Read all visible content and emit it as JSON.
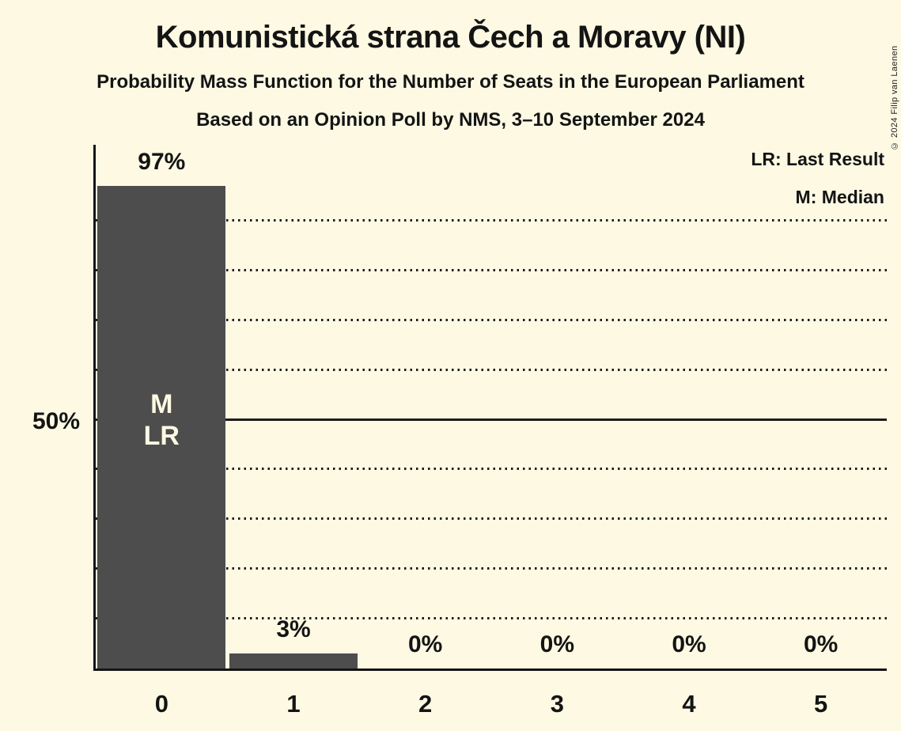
{
  "title": "Komunistická strana Čech a Moravy (NI)",
  "subtitle": "Probability Mass Function for the Number of Seats in the European Parliament",
  "poll_info": "Based on an Opinion Poll by NMS, 3–10 September 2024",
  "copyright": "© 2024 Filip van Laenen",
  "legend": {
    "last_result": "LR: Last Result",
    "median": "M: Median"
  },
  "colors": {
    "background": "#FDF9E3",
    "bar": "#4D4D4D",
    "text": "#141414",
    "bar_annotation_text": "#FDF9E3",
    "gridline": "#1C1C1C"
  },
  "chart_data": {
    "type": "bar",
    "title": "Komunistická strana Čech a Moravy (NI)",
    "categories": [
      "0",
      "1",
      "2",
      "3",
      "4",
      "5"
    ],
    "values": [
      97,
      3,
      0,
      0,
      0,
      0
    ],
    "value_labels": [
      "97%",
      "3%",
      "0%",
      "0%",
      "0%",
      "0%"
    ],
    "xlabel": "",
    "ylabel": "",
    "ylim": [
      0,
      100
    ],
    "grid": "horizontal dotted every 10%, solid line at 50%",
    "y_dotted_gridlines": [
      10,
      20,
      30,
      40,
      60,
      70,
      80,
      90
    ],
    "y_solid_line": 50,
    "y_solid_line_label": "50%",
    "legend_position": "top-right",
    "annotations": [
      {
        "category": "0",
        "lines": [
          "M",
          "LR"
        ]
      }
    ]
  }
}
